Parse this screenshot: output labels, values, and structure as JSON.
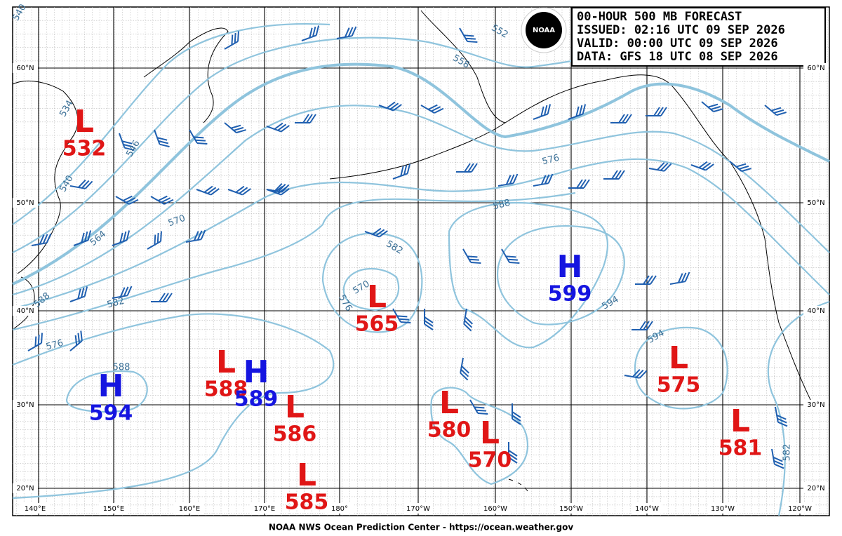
{
  "header": {
    "lines": [
      "00-HOUR 500 MB FORECAST",
      "ISSUED: 02:16 UTC 09 SEP 2026",
      "VALID:  00:00 UTC 09 SEP 2026",
      "DATA:  GFS 18 UTC 08 SEP 2026"
    ]
  },
  "logo": "NOAA",
  "centers": [
    {
      "type": "L",
      "value": "532"
    },
    {
      "type": "H",
      "value": "594"
    },
    {
      "type": "L",
      "value": "588"
    },
    {
      "type": "H",
      "value": "589"
    },
    {
      "type": "L",
      "value": "586"
    },
    {
      "type": "L",
      "value": "585"
    },
    {
      "type": "L",
      "value": "565"
    },
    {
      "type": "L",
      "value": "580"
    },
    {
      "type": "L",
      "value": "570"
    },
    {
      "type": "H",
      "value": "599"
    },
    {
      "type": "L",
      "value": "575"
    },
    {
      "type": "L",
      "value": "581"
    }
  ],
  "contour_labels": [
    "540",
    "552",
    "558",
    "534",
    "546",
    "540",
    "564",
    "570",
    "576",
    "588",
    "582",
    "570",
    "576",
    "582",
    "576",
    "588",
    "594",
    "594",
    "582",
    "588"
  ],
  "lat_labels": [
    "60°N",
    "50°N",
    "40°N",
    "30°N",
    "20°N"
  ],
  "lon_labels": [
    "140°E",
    "150°E",
    "160°E",
    "170°E",
    "180°",
    "170°W",
    "160°W",
    "150°W",
    "140°W",
    "130°W",
    "120°W"
  ],
  "footer": "NOAA NWS Ocean Prediction Center - https://ocean.weather.gov"
}
